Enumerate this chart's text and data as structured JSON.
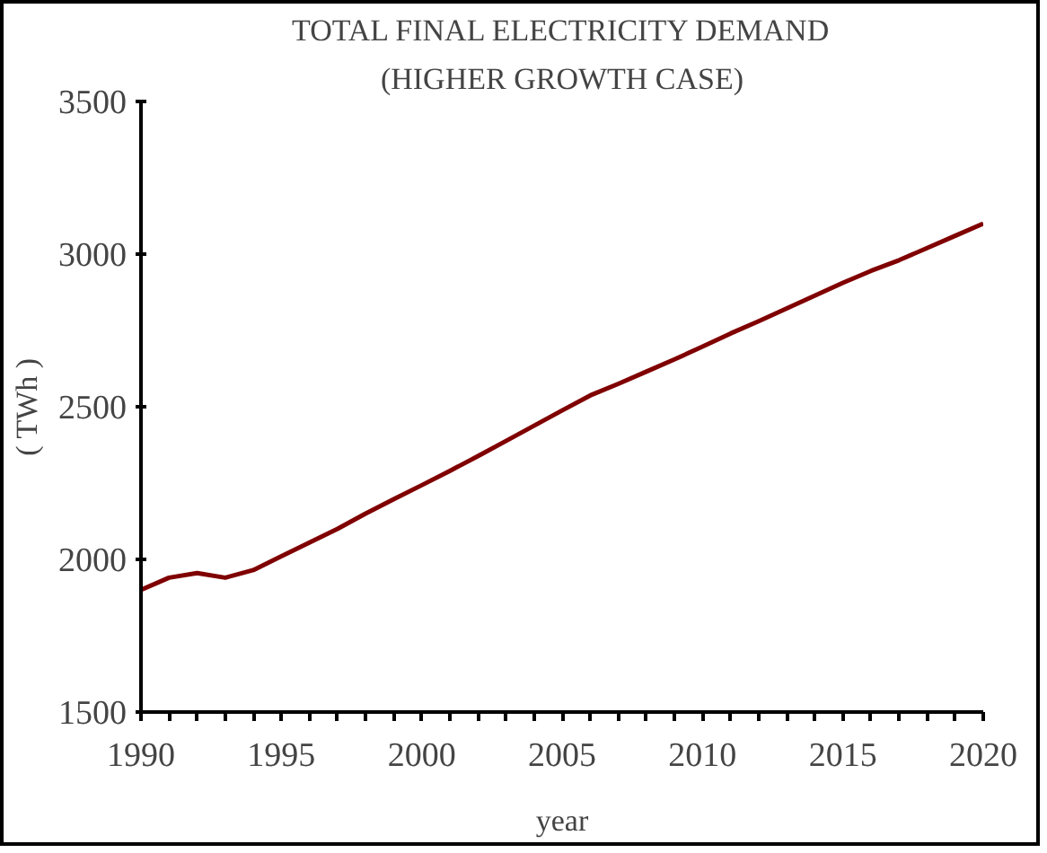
{
  "chart_data": {
    "type": "line",
    "title": "TOTAL FINAL ELECTRICITY DEMAND",
    "subtitle": "(HIGHER GROWTH CASE)",
    "xlabel": "year",
    "ylabel": "( TWh )",
    "x": [
      1990,
      1991,
      1992,
      1993,
      1994,
      1995,
      1996,
      1997,
      1998,
      1999,
      2000,
      2001,
      2002,
      2003,
      2004,
      2005,
      2006,
      2007,
      2008,
      2009,
      2010,
      2011,
      2012,
      2013,
      2014,
      2015,
      2016,
      2017,
      2018,
      2019,
      2020
    ],
    "series": [
      {
        "color": "#800000",
        "values": [
          1900,
          1940,
          1955,
          1940,
          1965,
          2010,
          2055,
          2100,
          2150,
          2197,
          2243,
          2290,
          2338,
          2388,
          2438,
          2488,
          2537,
          2575,
          2615,
          2655,
          2697,
          2740,
          2780,
          2822,
          2864,
          2906,
          2945,
          2980,
          3020,
          3060,
          3100
        ]
      }
    ],
    "xlim": [
      1990,
      2020
    ],
    "ylim": [
      1500,
      3500
    ],
    "xticks": [
      1990,
      {
        "value": 1991,
        "label": null
      },
      {
        "value": 1992,
        "label": null
      },
      {
        "value": 1993,
        "label": null
      },
      {
        "value": 1994,
        "label": null
      },
      1995,
      {
        "value": 1996,
        "label": null
      },
      {
        "value": 1997,
        "label": null
      },
      {
        "value": 1998,
        "label": null
      },
      {
        "value": 1999,
        "label": null
      },
      2000,
      {
        "value": 2001,
        "label": null
      },
      {
        "value": 2002,
        "label": null
      },
      {
        "value": 2003,
        "label": null
      },
      {
        "value": 2004,
        "label": null
      },
      2005,
      {
        "value": 2006,
        "label": null
      },
      {
        "value": 2007,
        "label": null
      },
      {
        "value": 2008,
        "label": null
      },
      {
        "value": 2009,
        "label": null
      },
      2010,
      {
        "value": 2011,
        "label": null
      },
      {
        "value": 2012,
        "label": null
      },
      {
        "value": 2013,
        "label": null
      },
      {
        "value": 2014,
        "label": null
      },
      2015,
      {
        "value": 2016,
        "label": null
      },
      {
        "value": 2017,
        "label": null
      },
      {
        "value": 2018,
        "label": null
      },
      {
        "value": 2019,
        "label": null
      },
      2020
    ],
    "yticks": [
      1500,
      2000,
      2500,
      3000,
      3500
    ],
    "line_style": "solid"
  }
}
